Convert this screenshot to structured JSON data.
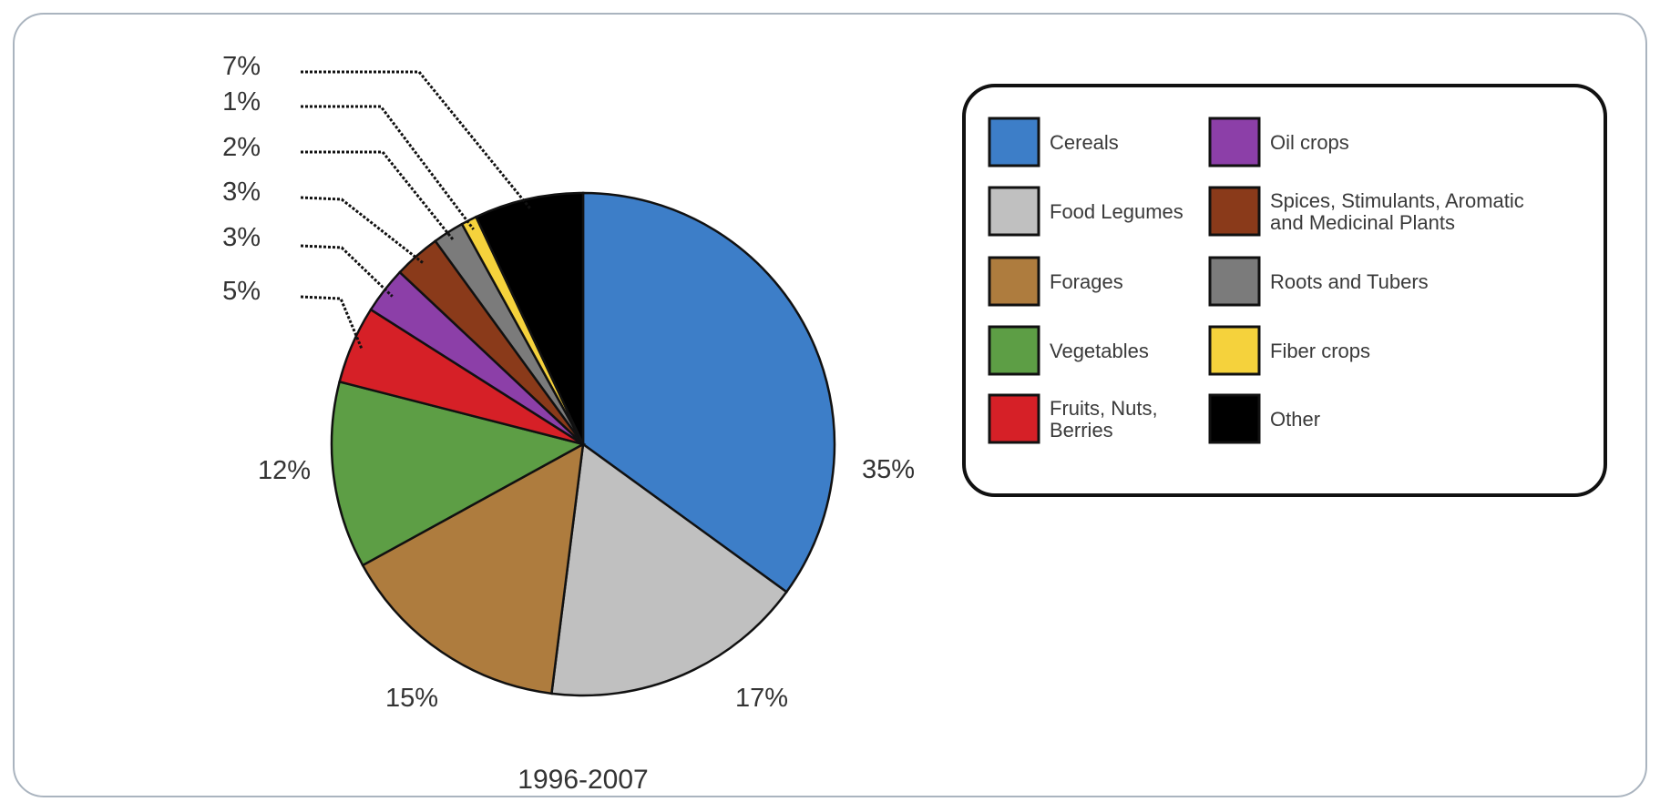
{
  "chart_data": {
    "type": "pie",
    "caption": "1996-2007",
    "slices": [
      {
        "label": "Cereals",
        "value": 35,
        "display": "35%",
        "color": "#3d7ec8"
      },
      {
        "label": "Food Legumes",
        "value": 17,
        "display": "17%",
        "color": "#c0c0c0"
      },
      {
        "label": "Forages",
        "value": 15,
        "display": "15%",
        "color": "#ae7c3e"
      },
      {
        "label": "Vegetables",
        "value": 12,
        "display": "12%",
        "color": "#5d9e45"
      },
      {
        "label": "Fruits, Nuts, Berries",
        "value": 5,
        "display": "5%",
        "color": "#d62027"
      },
      {
        "label": "Oil crops",
        "value": 3,
        "display": "3%",
        "color": "#8c3fa8"
      },
      {
        "label": "Spices, Stimulants, Aromatic and Medicinal Plants",
        "value": 3,
        "display": "3%",
        "color": "#8a3a1a"
      },
      {
        "label": "Roots and Tubers",
        "value": 2,
        "display": "2%",
        "color": "#7b7b7b"
      },
      {
        "label": "Fiber crops",
        "value": 1,
        "display": "1%",
        "color": "#f5d23c"
      },
      {
        "label": "Other",
        "value": 7,
        "display": "7%",
        "color": "#000000"
      }
    ],
    "legend": {
      "position": "right",
      "columns": [
        [
          {
            "text": "Cereals",
            "color": "#3d7ec8"
          },
          {
            "text": "Food Legumes",
            "color": "#c0c0c0"
          },
          {
            "text": "Forages",
            "color": "#ae7c3e"
          },
          {
            "text": "Vegetables",
            "color": "#5d9e45"
          },
          {
            "text": "Fruits, Nuts,\nBerries",
            "color": "#d62027"
          }
        ],
        [
          {
            "text": "Oil crops",
            "color": "#8c3fa8"
          },
          {
            "text": "Spices, Stimulants, Aromatic\nand Medicinal Plants",
            "color": "#8a3a1a"
          },
          {
            "text": "Roots and Tubers",
            "color": "#7b7b7b"
          },
          {
            "text": "Fiber crops",
            "color": "#f5d23c"
          },
          {
            "text": "Other",
            "color": "#000000"
          }
        ]
      ]
    }
  }
}
